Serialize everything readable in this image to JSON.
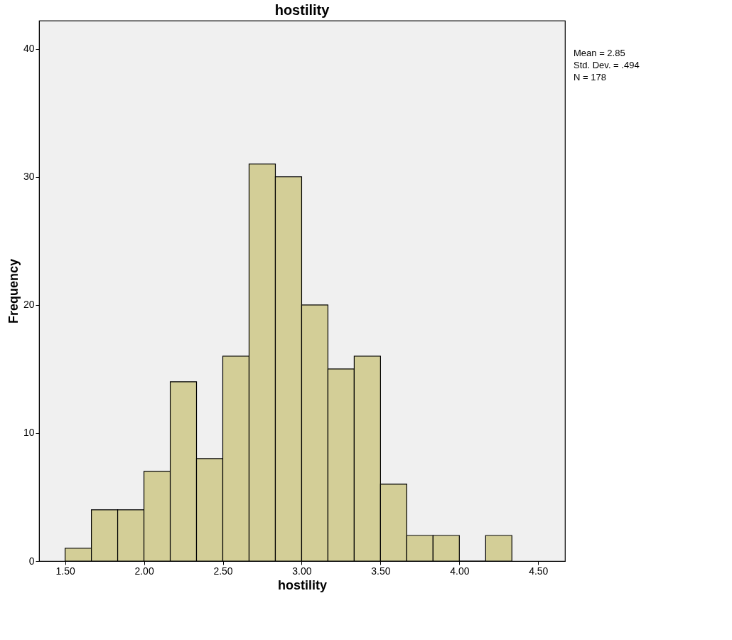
{
  "chart_data": {
    "type": "histogram",
    "title": "hostility",
    "xlabel": "hostility",
    "ylabel": "Frequency",
    "bins": [
      1.5,
      1.6667,
      1.8333,
      2.0,
      2.1667,
      2.3333,
      2.5,
      2.6667,
      2.8333,
      3.0,
      3.1667,
      3.3333,
      3.5,
      3.6667,
      3.8333,
      4.0,
      4.1667,
      4.3333
    ],
    "values": [
      1,
      4,
      4,
      7,
      14,
      8,
      16,
      31,
      30,
      20,
      15,
      16,
      6,
      2,
      2,
      0,
      2
    ],
    "color": "#d3ce97",
    "xlim": [
      1.335,
      4.67
    ],
    "xticks": [
      {
        "value": 1.5,
        "label": "1.50"
      },
      {
        "value": 2.0,
        "label": "2.00"
      },
      {
        "value": 2.5,
        "label": "2.50"
      },
      {
        "value": 3.0,
        "label": "3.00"
      },
      {
        "value": 3.5,
        "label": "3.50"
      },
      {
        "value": 4.0,
        "label": "4.00"
      },
      {
        "value": 4.5,
        "label": "4.50"
      }
    ],
    "ylim": [
      0,
      42.2
    ],
    "yticks": [
      0,
      10,
      20,
      30,
      40
    ],
    "grid": false,
    "annotations": [
      "Mean = 2.85",
      "Std. Dev. = .494",
      "N = 178"
    ]
  }
}
